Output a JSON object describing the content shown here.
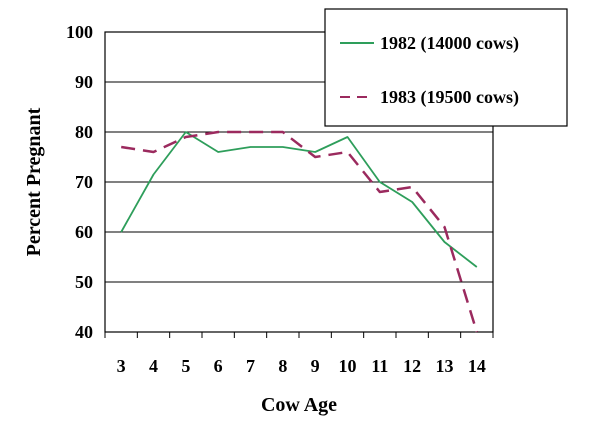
{
  "chart_data": {
    "type": "line",
    "x": [
      3,
      4,
      5,
      6,
      7,
      8,
      9,
      10,
      11,
      12,
      13,
      14
    ],
    "categories": [
      "3",
      "4",
      "5",
      "6",
      "7",
      "8",
      "9",
      "10",
      "11",
      "12",
      "13",
      "14"
    ],
    "series": [
      {
        "name": "1982 (14000 cows)",
        "color": "#2e9e5b",
        "style": "solid",
        "values": [
          60,
          71.5,
          80,
          76,
          77,
          77,
          76,
          79,
          70,
          66,
          58,
          53
        ]
      },
      {
        "name": "1983 (19500 cows)",
        "color": "#9b2a5e",
        "style": "dashed",
        "values": [
          77,
          76,
          79,
          80,
          80,
          80,
          75,
          76,
          68,
          69,
          61,
          40
        ]
      }
    ],
    "xlabel": "Cow Age",
    "ylabel": "Percent Pregnant",
    "ylim": [
      40,
      100
    ],
    "yticks": [
      "40",
      "50",
      "60",
      "70",
      "80",
      "90",
      "100"
    ],
    "grid": "horizontal",
    "legend_position": "top-right"
  }
}
